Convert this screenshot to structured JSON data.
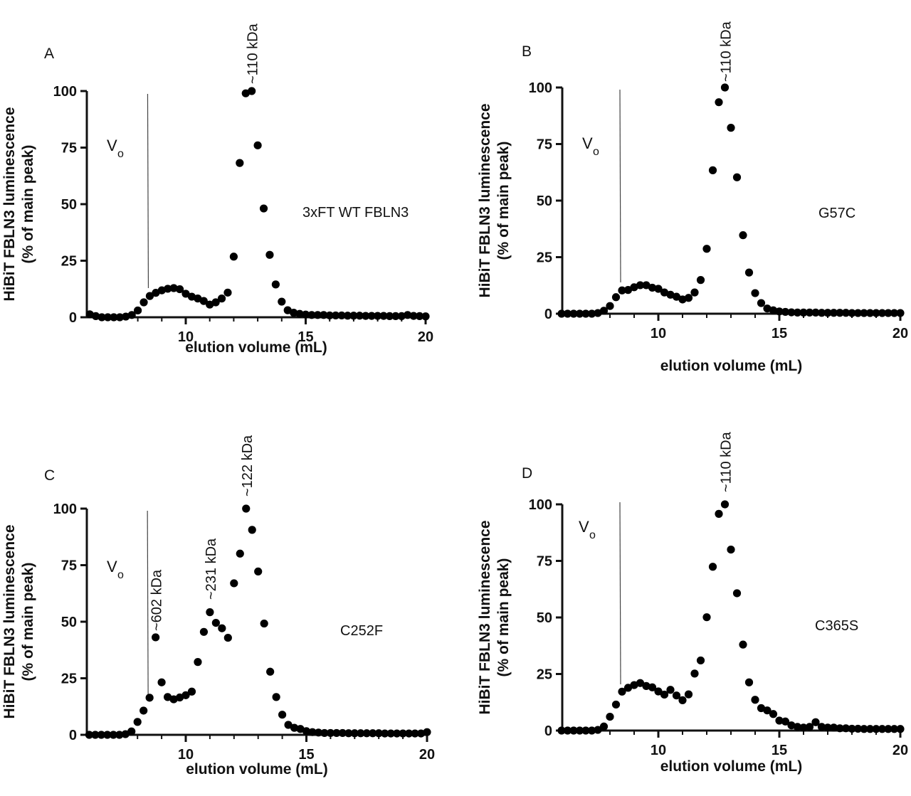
{
  "chart_data": [
    {
      "type": "scatter",
      "panel_label": "A",
      "sample_label": "3xFT WT FBLN3",
      "void_label": "V",
      "void_subscript": "o",
      "void_volume": 8.5,
      "annotations": [
        {
          "text": "~110 kDa",
          "x": 12.75
        }
      ],
      "xlabel": "elution volume (mL)",
      "ylabel": [
        "HiBiT FBLN3 luminescence",
        "(% of main peak)"
      ],
      "xlim": [
        6,
        20
      ],
      "ylim": [
        0,
        100
      ],
      "xticks": [
        10,
        15,
        20
      ],
      "yticks": [
        0,
        25,
        50,
        75,
        100
      ],
      "x": [
        6,
        6.25,
        6.5,
        6.75,
        7,
        7.25,
        7.5,
        7.75,
        8,
        8.25,
        8.5,
        8.75,
        9,
        9.25,
        9.5,
        9.75,
        10,
        10.25,
        10.5,
        10.75,
        11,
        11.25,
        11.5,
        11.75,
        12,
        12.25,
        12.5,
        12.75,
        13,
        13.25,
        13.5,
        13.75,
        14,
        14.25,
        14.5,
        14.75,
        15,
        15.25,
        15.5,
        15.75,
        16,
        16.25,
        16.5,
        16.75,
        17,
        17.25,
        17.5,
        17.75,
        18,
        18.25,
        18.5,
        18.75,
        19,
        19.25,
        19.5,
        19.75,
        20
      ],
      "y": [
        1.3,
        0.5,
        0,
        0,
        0,
        0,
        0.3,
        1,
        3,
        6.6,
        9.4,
        10.8,
        11.9,
        12.6,
        12.9,
        12.4,
        10.4,
        9.1,
        8.3,
        7.2,
        5.6,
        6.6,
        8.3,
        10.9,
        26.8,
        68.2,
        99,
        100,
        76,
        48.1,
        27.6,
        14.5,
        6.9,
        3.1,
        2,
        1.5,
        1.2,
        1,
        1,
        1,
        0.8,
        0.8,
        0.8,
        0.7,
        0.7,
        0.7,
        0.6,
        0.6,
        0.6,
        0.6,
        0.5,
        0.5,
        0.5,
        1.0,
        0.6,
        0.5,
        0.4
      ]
    },
    {
      "type": "scatter",
      "panel_label": "B",
      "sample_label": "G57C",
      "void_label": "V",
      "void_subscript": "o",
      "void_volume": 8.5,
      "annotations": [
        {
          "text": "~110 kDa",
          "x": 12.75
        }
      ],
      "xlabel": "elution volume (mL)",
      "ylabel": [
        "HiBiT FBLN3 luminescence",
        "(% of main peak)"
      ],
      "xlim": [
        6,
        20
      ],
      "ylim": [
        0,
        100
      ],
      "xticks": [
        10,
        15,
        20
      ],
      "yticks": [
        0,
        25,
        50,
        75,
        100
      ],
      "x": [
        6,
        6.25,
        6.5,
        6.75,
        7,
        7.25,
        7.5,
        7.75,
        8,
        8.25,
        8.5,
        8.75,
        9,
        9.25,
        9.5,
        9.75,
        10,
        10.25,
        10.5,
        10.75,
        11,
        11.25,
        11.5,
        11.75,
        12,
        12.25,
        12.5,
        12.75,
        13,
        13.25,
        13.5,
        13.75,
        14,
        14.25,
        14.5,
        14.75,
        15,
        15.25,
        15.5,
        15.75,
        16,
        16.25,
        16.5,
        16.75,
        17,
        17.25,
        17.5,
        17.75,
        18,
        18.25,
        18.5,
        18.75,
        19,
        19.25,
        19.5,
        19.75,
        20
      ],
      "y": [
        0,
        0,
        0,
        0,
        0,
        0,
        0.3,
        1.3,
        3.4,
        7.3,
        10.3,
        10.5,
        11.7,
        12.6,
        12.6,
        11.5,
        11,
        9.4,
        8.4,
        7.5,
        6.3,
        7,
        9.4,
        14.9,
        28.7,
        63.4,
        93.5,
        100,
        82.2,
        60.3,
        34.7,
        18.2,
        9.1,
        4.7,
        2.3,
        1.5,
        1.0,
        0.8,
        0.6,
        0.5,
        0.5,
        0.5,
        0.5,
        0.4,
        0.4,
        0.4,
        0.4,
        0.4,
        0.3,
        0.3,
        0.3,
        0.3,
        0.3,
        0.3,
        0.3,
        0.3,
        0.3
      ]
    },
    {
      "type": "scatter",
      "panel_label": "C",
      "sample_label": "C252F",
      "void_label": "V",
      "void_subscript": "o",
      "void_volume": 8.5,
      "annotations": [
        {
          "text": "~602 kDa",
          "x": 8.75
        },
        {
          "text": "~231 kDa",
          "x": 11.0
        },
        {
          "text": "~122 kDa",
          "x": 12.5
        }
      ],
      "xlabel": "elution volume (mL)",
      "ylabel": [
        "HiBiT FBLN3 luminescence",
        "(% of main peak)"
      ],
      "xlim": [
        6,
        20
      ],
      "ylim": [
        0,
        100
      ],
      "xticks": [
        10,
        15,
        20
      ],
      "yticks": [
        0,
        25,
        50,
        75,
        100
      ],
      "x": [
        6,
        6.25,
        6.5,
        6.75,
        7,
        7.25,
        7.5,
        7.75,
        8,
        8.25,
        8.5,
        8.75,
        9,
        9.25,
        9.5,
        9.75,
        10,
        10.25,
        10.5,
        10.75,
        11,
        11.25,
        11.5,
        11.75,
        12,
        12.25,
        12.5,
        12.75,
        13,
        13.25,
        13.5,
        13.75,
        14,
        14.25,
        14.5,
        14.75,
        15,
        15.25,
        15.5,
        15.75,
        16,
        16.25,
        16.5,
        16.75,
        17,
        17.25,
        17.5,
        17.75,
        18,
        18.25,
        18.5,
        18.75,
        19,
        19.25,
        19.5,
        19.75,
        20
      ],
      "y": [
        0,
        0,
        0,
        0,
        0,
        0,
        0.3,
        1.5,
        5.7,
        10.7,
        16.4,
        43.1,
        23.2,
        16.7,
        15.7,
        16.5,
        17.5,
        19.1,
        32.2,
        45.5,
        54.2,
        49.5,
        47.1,
        42.9,
        67,
        80.1,
        100,
        90.6,
        72.2,
        49.2,
        27.9,
        16.7,
        8.9,
        4.4,
        3.1,
        2.6,
        1.6,
        1.2,
        1,
        0.8,
        0.8,
        0.8,
        0.8,
        0.7,
        0.7,
        0.7,
        0.7,
        0.7,
        0.7,
        0.6,
        0.6,
        0.6,
        0.6,
        0.6,
        0.6,
        0.6,
        1.2
      ]
    },
    {
      "type": "scatter",
      "panel_label": "D",
      "sample_label": "C365S",
      "void_label": "V",
      "void_subscript": "o",
      "void_volume": 8.5,
      "annotations": [
        {
          "text": "~110 kDa",
          "x": 12.75
        }
      ],
      "xlabel": "elution volume (mL)",
      "ylabel": [
        "HiBiT FBLN3 luminescence",
        "(% of main peak)"
      ],
      "xlim": [
        6,
        20
      ],
      "ylim": [
        0,
        100
      ],
      "xticks": [
        10,
        15,
        20
      ],
      "yticks": [
        0,
        25,
        50,
        75,
        100
      ],
      "x": [
        6,
        6.25,
        6.5,
        6.75,
        7,
        7.25,
        7.5,
        7.75,
        8,
        8.25,
        8.5,
        8.75,
        9,
        9.25,
        9.5,
        9.75,
        10,
        10.25,
        10.5,
        10.75,
        11,
        11.25,
        11.5,
        11.75,
        12,
        12.25,
        12.5,
        12.75,
        13,
        13.25,
        13.5,
        13.75,
        14,
        14.25,
        14.5,
        14.75,
        15,
        15.25,
        15.5,
        15.75,
        16,
        16.25,
        16.5,
        16.75,
        17,
        17.25,
        17.5,
        17.75,
        18,
        18.25,
        18.5,
        18.75,
        19,
        19.25,
        19.5,
        19.75,
        20
      ],
      "y": [
        0,
        0,
        0,
        0,
        0,
        0,
        0.3,
        1.8,
        6.1,
        11.5,
        17.2,
        18.9,
        20.1,
        21,
        19.7,
        19.1,
        17.3,
        15.9,
        18,
        15.5,
        13.4,
        16,
        25.2,
        31,
        50.1,
        72.4,
        95.8,
        100,
        80,
        60.7,
        38,
        21.3,
        13.6,
        9.9,
        8.9,
        7.3,
        4.4,
        4.0,
        2.3,
        1.6,
        1.3,
        1.6,
        3.7,
        1.6,
        1.3,
        1.3,
        1.0,
        1.0,
        0.8,
        0.8,
        0.7,
        0.7,
        0.7,
        0.7,
        0.7,
        0.7,
        0.7
      ]
    }
  ]
}
